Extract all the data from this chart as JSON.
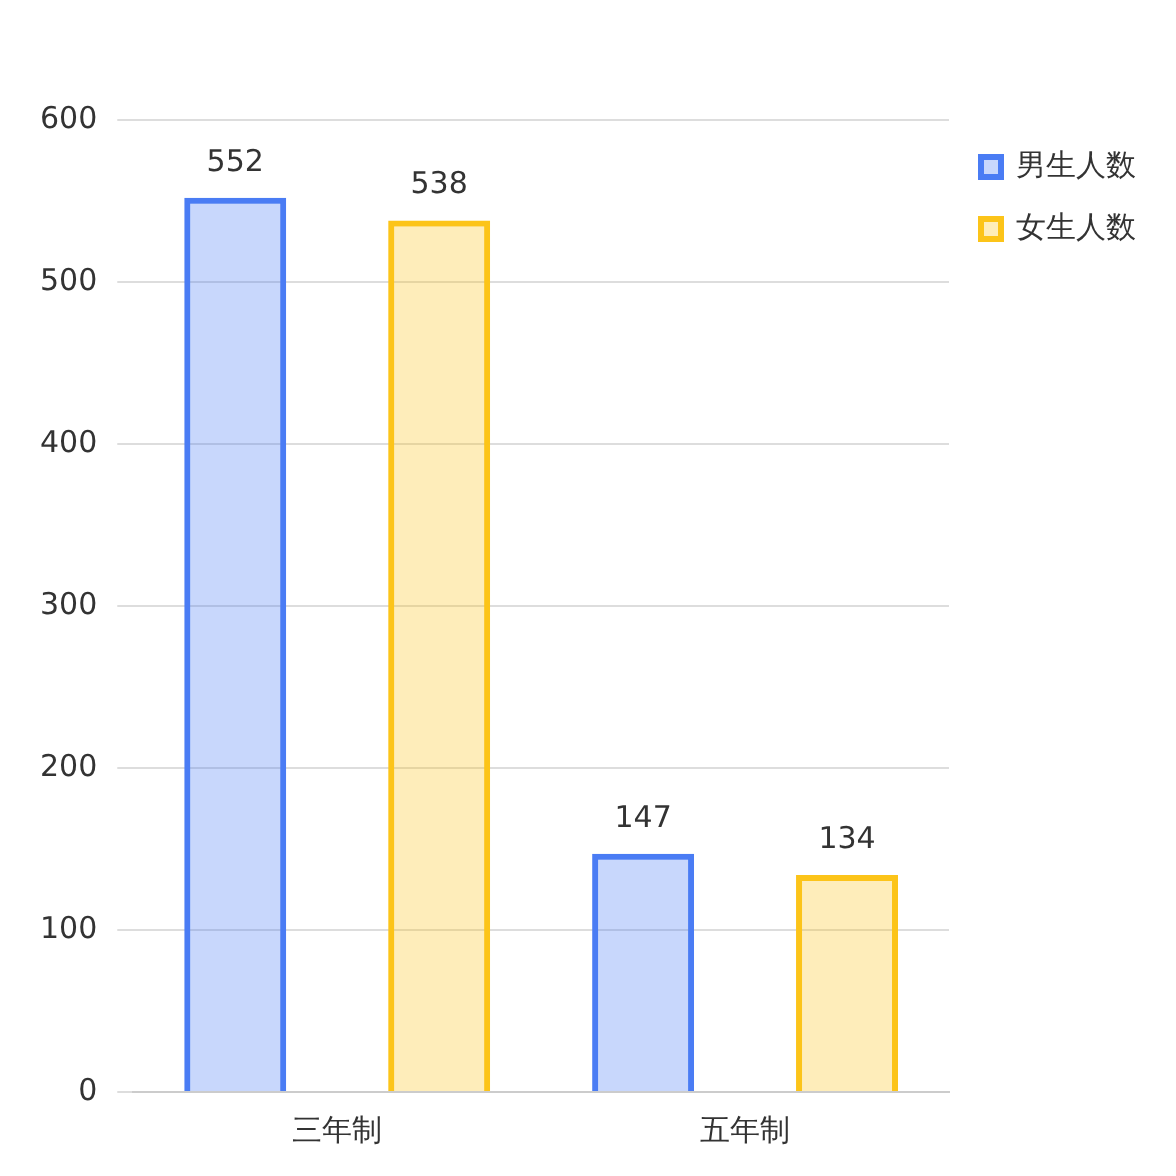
{
  "chart_data": {
    "type": "bar",
    "categories": [
      "三年制",
      "五年制"
    ],
    "series": [
      {
        "name": "男生人数",
        "color": "#4a7cf4",
        "values": [
          552,
          147
        ]
      },
      {
        "name": "女生人数",
        "color": "#fcc419",
        "values": [
          538,
          134
        ]
      }
    ],
    "ylim": [
      0,
      600
    ],
    "yticks": [
      0,
      100,
      200,
      300,
      400,
      500,
      600
    ],
    "grid": "y",
    "legend": "top right",
    "data_labels": true
  }
}
